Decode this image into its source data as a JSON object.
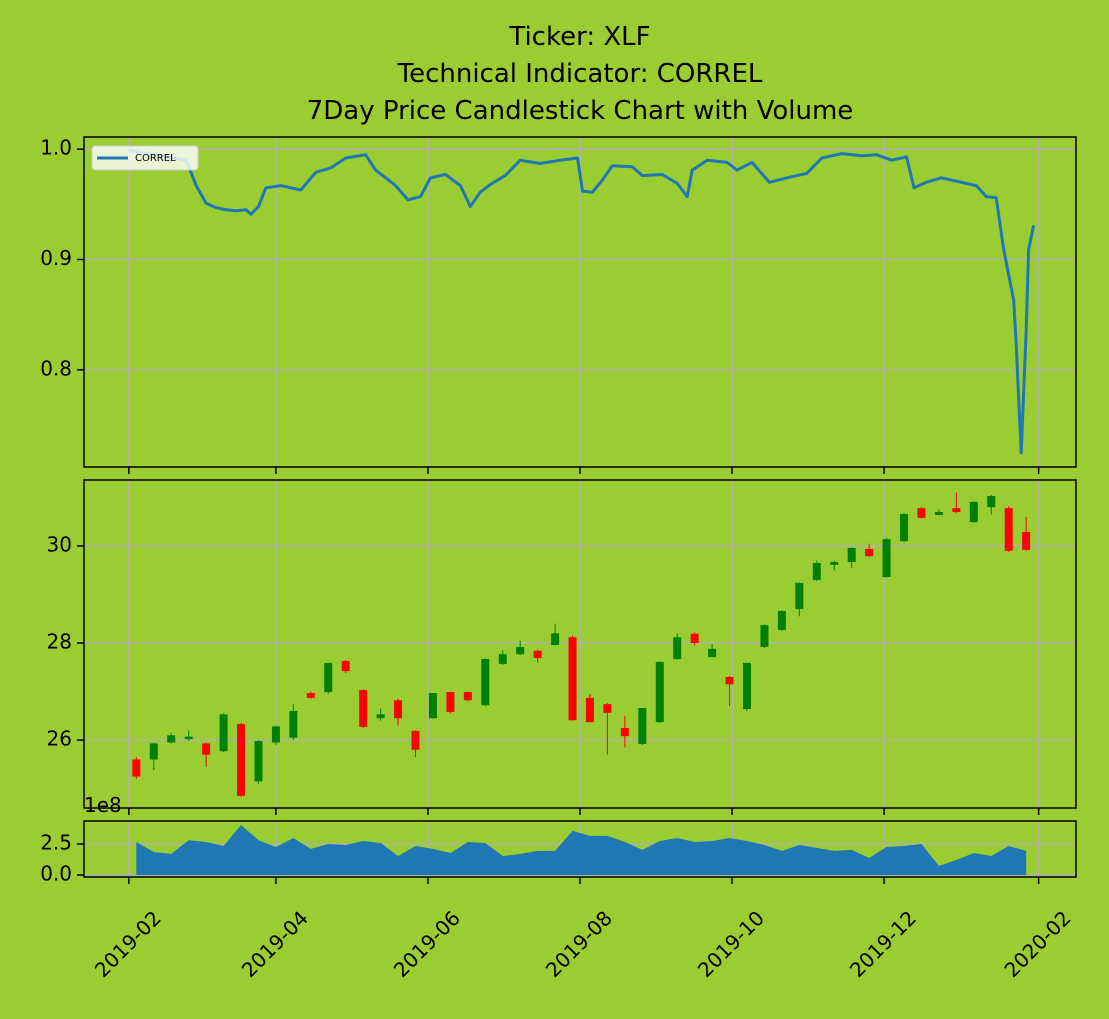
{
  "chart_data": [
    {
      "type": "line",
      "title": [
        "Ticker: XLF",
        "Technical Indicator: CORREL",
        "7Day Price Candlestick Chart with Volume"
      ],
      "x": [
        "2019-02-01",
        "2019-02-24",
        "2019-02-28",
        "2019-03-04",
        "2019-03-08",
        "2019-03-12",
        "2019-03-16",
        "2019-03-20",
        "2019-03-22",
        "2019-03-25",
        "2019-03-28",
        "2019-04-03",
        "2019-04-11",
        "2019-04-17",
        "2019-04-23",
        "2019-04-29",
        "2019-05-07",
        "2019-05-11",
        "2019-05-19",
        "2019-05-24",
        "2019-05-29",
        "2019-06-02",
        "2019-06-08",
        "2019-06-14",
        "2019-06-18",
        "2019-06-22",
        "2019-06-26",
        "2019-07-02",
        "2019-07-08",
        "2019-07-16",
        "2019-07-24",
        "2019-07-31",
        "2019-08-02",
        "2019-08-06",
        "2019-08-10",
        "2019-08-14",
        "2019-08-22",
        "2019-08-26",
        "2019-09-03",
        "2019-09-09",
        "2019-09-13",
        "2019-09-15",
        "2019-09-21",
        "2019-09-29",
        "2019-10-03",
        "2019-10-09",
        "2019-10-16",
        "2019-10-25",
        "2019-10-31",
        "2019-11-06",
        "2019-11-14",
        "2019-11-22",
        "2019-11-28",
        "2019-12-04",
        "2019-12-10",
        "2019-12-13",
        "2019-12-18",
        "2019-12-24",
        "2020-01-01",
        "2020-01-07",
        "2020-01-11",
        "2020-01-15",
        "2020-01-18",
        "2020-01-22",
        "2020-01-23",
        "2020-01-25",
        "2020-01-27",
        "2020-01-28",
        "2020-01-30"
      ],
      "series": [
        {
          "name": "CORREL",
          "color": "#1f77b4",
          "values": [
            0.999,
            0.99,
            0.967,
            0.951,
            0.947,
            0.945,
            0.944,
            0.945,
            0.941,
            0.948,
            0.965,
            0.967,
            0.963,
            0.979,
            0.983,
            0.992,
            0.995,
            0.981,
            0.967,
            0.954,
            0.957,
            0.974,
            0.977,
            0.967,
            0.948,
            0.961,
            0.968,
            0.976,
            0.99,
            0.987,
            0.99,
            0.992,
            0.962,
            0.961,
            0.972,
            0.985,
            0.984,
            0.976,
            0.977,
            0.969,
            0.957,
            0.981,
            0.99,
            0.988,
            0.981,
            0.988,
            0.97,
            0.975,
            0.978,
            0.992,
            0.996,
            0.994,
            0.995,
            0.99,
            0.993,
            0.965,
            0.97,
            0.974,
            0.97,
            0.967,
            0.957,
            0.956,
            0.909,
            0.863,
            0.823,
            0.725,
            0.836,
            0.909,
            0.931
          ]
        }
      ],
      "legend": "upper left",
      "ylim": [
        0.712,
        1.011
      ],
      "yticks": [
        0.8,
        0.9,
        {
          "value": 1,
          "label": "1.0"
        }
      ],
      "grid": true
    },
    {
      "type": "candlestick",
      "x": [
        "2019-02-04",
        "2019-02-11",
        "2019-02-18",
        "2019-02-25",
        "2019-03-04",
        "2019-03-11",
        "2019-03-18",
        "2019-03-25",
        "2019-04-01",
        "2019-04-08",
        "2019-04-15",
        "2019-04-22",
        "2019-04-29",
        "2019-05-06",
        "2019-05-13",
        "2019-05-20",
        "2019-05-27",
        "2019-06-03",
        "2019-06-10",
        "2019-06-17",
        "2019-06-24",
        "2019-07-01",
        "2019-07-08",
        "2019-07-15",
        "2019-07-22",
        "2019-07-29",
        "2019-08-05",
        "2019-08-12",
        "2019-08-19",
        "2019-08-26",
        "2019-09-02",
        "2019-09-09",
        "2019-09-16",
        "2019-09-23",
        "2019-09-30",
        "2019-10-07",
        "2019-10-14",
        "2019-10-21",
        "2019-10-28",
        "2019-11-04",
        "2019-11-11",
        "2019-11-18",
        "2019-11-25",
        "2019-12-02",
        "2019-12-09",
        "2019-12-16",
        "2019-12-23",
        "2019-12-30",
        "2020-01-06",
        "2020-01-13",
        "2020-01-20",
        "2020-01-27"
      ],
      "open": [
        25.6,
        25.6,
        25.95,
        26.02,
        25.93,
        25.77,
        26.33,
        25.15,
        25.95,
        26.05,
        26.97,
        26.99,
        27.63,
        27.03,
        26.45,
        26.82,
        26.19,
        26.45,
        26.99,
        26.99,
        26.72,
        27.57,
        27.77,
        27.84,
        27.96,
        28.12,
        26.87,
        26.74,
        26.25,
        25.92,
        26.37,
        27.67,
        28.19,
        27.71,
        27.3,
        26.64,
        27.92,
        28.27,
        28.7,
        29.3,
        29.61,
        29.67,
        29.94,
        29.36,
        30.1,
        30.78,
        30.64,
        30.78,
        30.49,
        30.8,
        30.78,
        30.29
      ],
      "high": [
        25.65,
        25.95,
        26.15,
        26.2,
        25.95,
        26.55,
        26.35,
        26.0,
        26.3,
        26.75,
        27.0,
        27.6,
        27.65,
        27.05,
        26.65,
        26.85,
        26.2,
        26.97,
        27.0,
        27.0,
        27.68,
        27.85,
        28.05,
        27.86,
        28.4,
        28.15,
        26.95,
        26.76,
        26.5,
        26.66,
        27.62,
        28.2,
        28.22,
        27.98,
        27.32,
        27.6,
        28.38,
        28.68,
        29.25,
        29.7,
        29.7,
        29.97,
        30.05,
        30.17,
        30.68,
        30.8,
        30.75,
        31.1,
        30.92,
        31.05,
        30.82,
        30.6
      ],
      "low": [
        25.2,
        25.38,
        25.93,
        25.98,
        25.45,
        25.75,
        24.83,
        25.1,
        25.9,
        26.0,
        26.85,
        26.95,
        27.38,
        26.25,
        26.4,
        26.3,
        25.65,
        26.45,
        26.55,
        26.8,
        26.7,
        27.55,
        27.75,
        27.6,
        27.95,
        26.4,
        26.37,
        25.7,
        25.85,
        25.9,
        26.35,
        27.65,
        27.95,
        27.7,
        26.7,
        26.6,
        27.9,
        28.25,
        28.55,
        29.28,
        29.5,
        29.55,
        29.78,
        29.35,
        30.08,
        30.57,
        30.63,
        30.68,
        30.48,
        30.65,
        29.88,
        29.9
      ],
      "close": [
        25.25,
        25.93,
        26.1,
        26.07,
        25.7,
        26.53,
        24.85,
        25.98,
        26.28,
        26.6,
        26.87,
        27.59,
        27.42,
        26.27,
        26.53,
        26.45,
        25.8,
        26.97,
        26.58,
        26.82,
        27.67,
        27.77,
        27.92,
        27.69,
        28.2,
        26.41,
        26.37,
        26.56,
        26.08,
        26.66,
        27.61,
        28.12,
        28.0,
        27.88,
        27.15,
        27.59,
        28.37,
        28.66,
        29.24,
        29.65,
        29.67,
        29.96,
        29.79,
        30.14,
        30.66,
        30.58,
        30.7,
        30.7,
        30.91,
        31.03,
        29.9,
        29.92
      ],
      "colors": {
        "up": "#008000",
        "down": "#ff0000"
      },
      "ylim": [
        24.6,
        31.36
      ],
      "yticks": [
        26,
        28,
        30
      ],
      "grid": true
    },
    {
      "type": "area",
      "x": [
        "2019-02-04",
        "2019-02-11",
        "2019-02-18",
        "2019-02-25",
        "2019-03-04",
        "2019-03-11",
        "2019-03-18",
        "2019-03-25",
        "2019-04-01",
        "2019-04-08",
        "2019-04-15",
        "2019-04-22",
        "2019-04-29",
        "2019-05-06",
        "2019-05-13",
        "2019-05-20",
        "2019-05-27",
        "2019-06-03",
        "2019-06-10",
        "2019-06-17",
        "2019-06-24",
        "2019-07-01",
        "2019-07-08",
        "2019-07-15",
        "2019-07-22",
        "2019-07-29",
        "2019-08-05",
        "2019-08-12",
        "2019-08-19",
        "2019-08-26",
        "2019-09-02",
        "2019-09-09",
        "2019-09-16",
        "2019-09-23",
        "2019-09-30",
        "2019-10-07",
        "2019-10-14",
        "2019-10-21",
        "2019-10-28",
        "2019-11-04",
        "2019-11-11",
        "2019-11-18",
        "2019-11-25",
        "2019-12-02",
        "2019-12-09",
        "2019-12-16",
        "2019-12-23",
        "2019-12-30",
        "2020-01-06",
        "2020-01-13",
        "2020-01-20",
        "2020-01-27"
      ],
      "values": [
        2.66,
        1.85,
        1.7,
        2.8,
        2.66,
        2.34,
        4.03,
        2.8,
        2.26,
        2.98,
        2.1,
        2.5,
        2.42,
        2.74,
        2.58,
        1.53,
        2.34,
        2.1,
        1.77,
        2.66,
        2.58,
        1.53,
        1.7,
        1.94,
        1.94,
        3.55,
        3.15,
        3.15,
        2.66,
        2.02,
        2.74,
        2.98,
        2.66,
        2.74,
        2.98,
        2.74,
        2.42,
        1.94,
        2.42,
        2.18,
        1.94,
        2.02,
        1.37,
        2.26,
        2.34,
        2.5,
        0.73,
        1.21,
        1.77,
        1.53,
        2.34,
        1.94
      ],
      "color": "#1f77b4",
      "offset_label": "1e8",
      "ylim": [
        -0.16,
        4.35
      ],
      "yticks": [
        {
          "value": 0,
          "label": "0.0"
        },
        2.5
      ],
      "grid": true,
      "xlim": [
        "2019-01-14",
        "2020-02-16"
      ],
      "xticks": [
        {
          "value": "2019-02-01",
          "label": "2019-02"
        },
        {
          "value": "2019-04-01",
          "label": "2019-04"
        },
        {
          "value": "2019-06-01",
          "label": "2019-06"
        },
        {
          "value": "2019-08-01",
          "label": "2019-08"
        },
        {
          "value": "2019-10-01",
          "label": "2019-10"
        },
        {
          "value": "2019-12-01",
          "label": "2019-12"
        },
        {
          "value": "2020-02-01",
          "label": "2020-02"
        }
      ]
    }
  ]
}
